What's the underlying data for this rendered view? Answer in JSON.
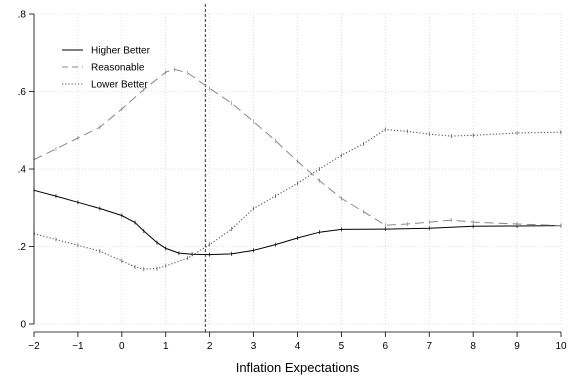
{
  "chart_data": {
    "type": "line",
    "title": "",
    "xlabel": "Inflation Expectations",
    "ylabel": "",
    "xlim": [
      -2,
      10
    ],
    "ylim": [
      0,
      0.8
    ],
    "x_ticks": [
      -2,
      -1,
      0,
      1,
      2,
      3,
      4,
      5,
      6,
      7,
      8,
      9,
      10
    ],
    "x_tick_labels": [
      "−2",
      "−1",
      "0",
      "1",
      "2",
      "3",
      "4",
      "5",
      "6",
      "7",
      "8",
      "9",
      "10"
    ],
    "y_ticks": [
      0,
      0.2,
      0.4,
      0.6,
      0.8
    ],
    "y_tick_labels": [
      "0",
      ".2",
      ".4",
      ".6",
      ".8"
    ],
    "grid": true,
    "reference_line_x": 1.9,
    "legend_position": "top-left",
    "series": [
      {
        "name": "Higher Better",
        "style": "solid",
        "color": "#000000",
        "points": [
          [
            -2,
            0.345
          ],
          [
            -1.5,
            0.33
          ],
          [
            -1,
            0.314
          ],
          [
            -0.5,
            0.298
          ],
          [
            0,
            0.28
          ],
          [
            0.3,
            0.262
          ],
          [
            0.5,
            0.24
          ],
          [
            0.8,
            0.21
          ],
          [
            1,
            0.195
          ],
          [
            1.3,
            0.183
          ],
          [
            1.6,
            0.18
          ],
          [
            2,
            0.179
          ],
          [
            2.5,
            0.181
          ],
          [
            3,
            0.19
          ],
          [
            3.5,
            0.205
          ],
          [
            4,
            0.222
          ],
          [
            4.5,
            0.237
          ],
          [
            5,
            0.244
          ],
          [
            6,
            0.245
          ],
          [
            7,
            0.247
          ],
          [
            8,
            0.252
          ],
          [
            9,
            0.253
          ],
          [
            10,
            0.254
          ]
        ]
      },
      {
        "name": "Reasonable",
        "style": "dashed",
        "color": "#888888",
        "points": [
          [
            -2,
            0.424
          ],
          [
            -1.5,
            0.452
          ],
          [
            -1,
            0.48
          ],
          [
            -0.5,
            0.508
          ],
          [
            0,
            0.555
          ],
          [
            0.5,
            0.605
          ],
          [
            1,
            0.65
          ],
          [
            1.2,
            0.657
          ],
          [
            1.5,
            0.648
          ],
          [
            2,
            0.608
          ],
          [
            2.5,
            0.57
          ],
          [
            3,
            0.522
          ],
          [
            3.5,
            0.473
          ],
          [
            4,
            0.42
          ],
          [
            4.5,
            0.37
          ],
          [
            5,
            0.324
          ],
          [
            5.5,
            0.29
          ],
          [
            6,
            0.255
          ],
          [
            6.5,
            0.258
          ],
          [
            7,
            0.263
          ],
          [
            7.5,
            0.268
          ],
          [
            8,
            0.263
          ],
          [
            9,
            0.258
          ],
          [
            10,
            0.254
          ]
        ]
      },
      {
        "name": "Lower Better",
        "style": "dotted",
        "color": "#555555",
        "points": [
          [
            -2,
            0.233
          ],
          [
            -1.5,
            0.218
          ],
          [
            -1,
            0.203
          ],
          [
            -0.5,
            0.188
          ],
          [
            0,
            0.163
          ],
          [
            0.3,
            0.147
          ],
          [
            0.5,
            0.142
          ],
          [
            0.8,
            0.143
          ],
          [
            1,
            0.15
          ],
          [
            1.5,
            0.17
          ],
          [
            2,
            0.205
          ],
          [
            2.5,
            0.245
          ],
          [
            3,
            0.298
          ],
          [
            3.5,
            0.33
          ],
          [
            4,
            0.363
          ],
          [
            4.5,
            0.4
          ],
          [
            5,
            0.435
          ],
          [
            5.5,
            0.465
          ],
          [
            6,
            0.502
          ],
          [
            6.5,
            0.497
          ],
          [
            7,
            0.49
          ],
          [
            7.5,
            0.485
          ],
          [
            8,
            0.487
          ],
          [
            9,
            0.493
          ],
          [
            10,
            0.495
          ]
        ]
      }
    ]
  }
}
